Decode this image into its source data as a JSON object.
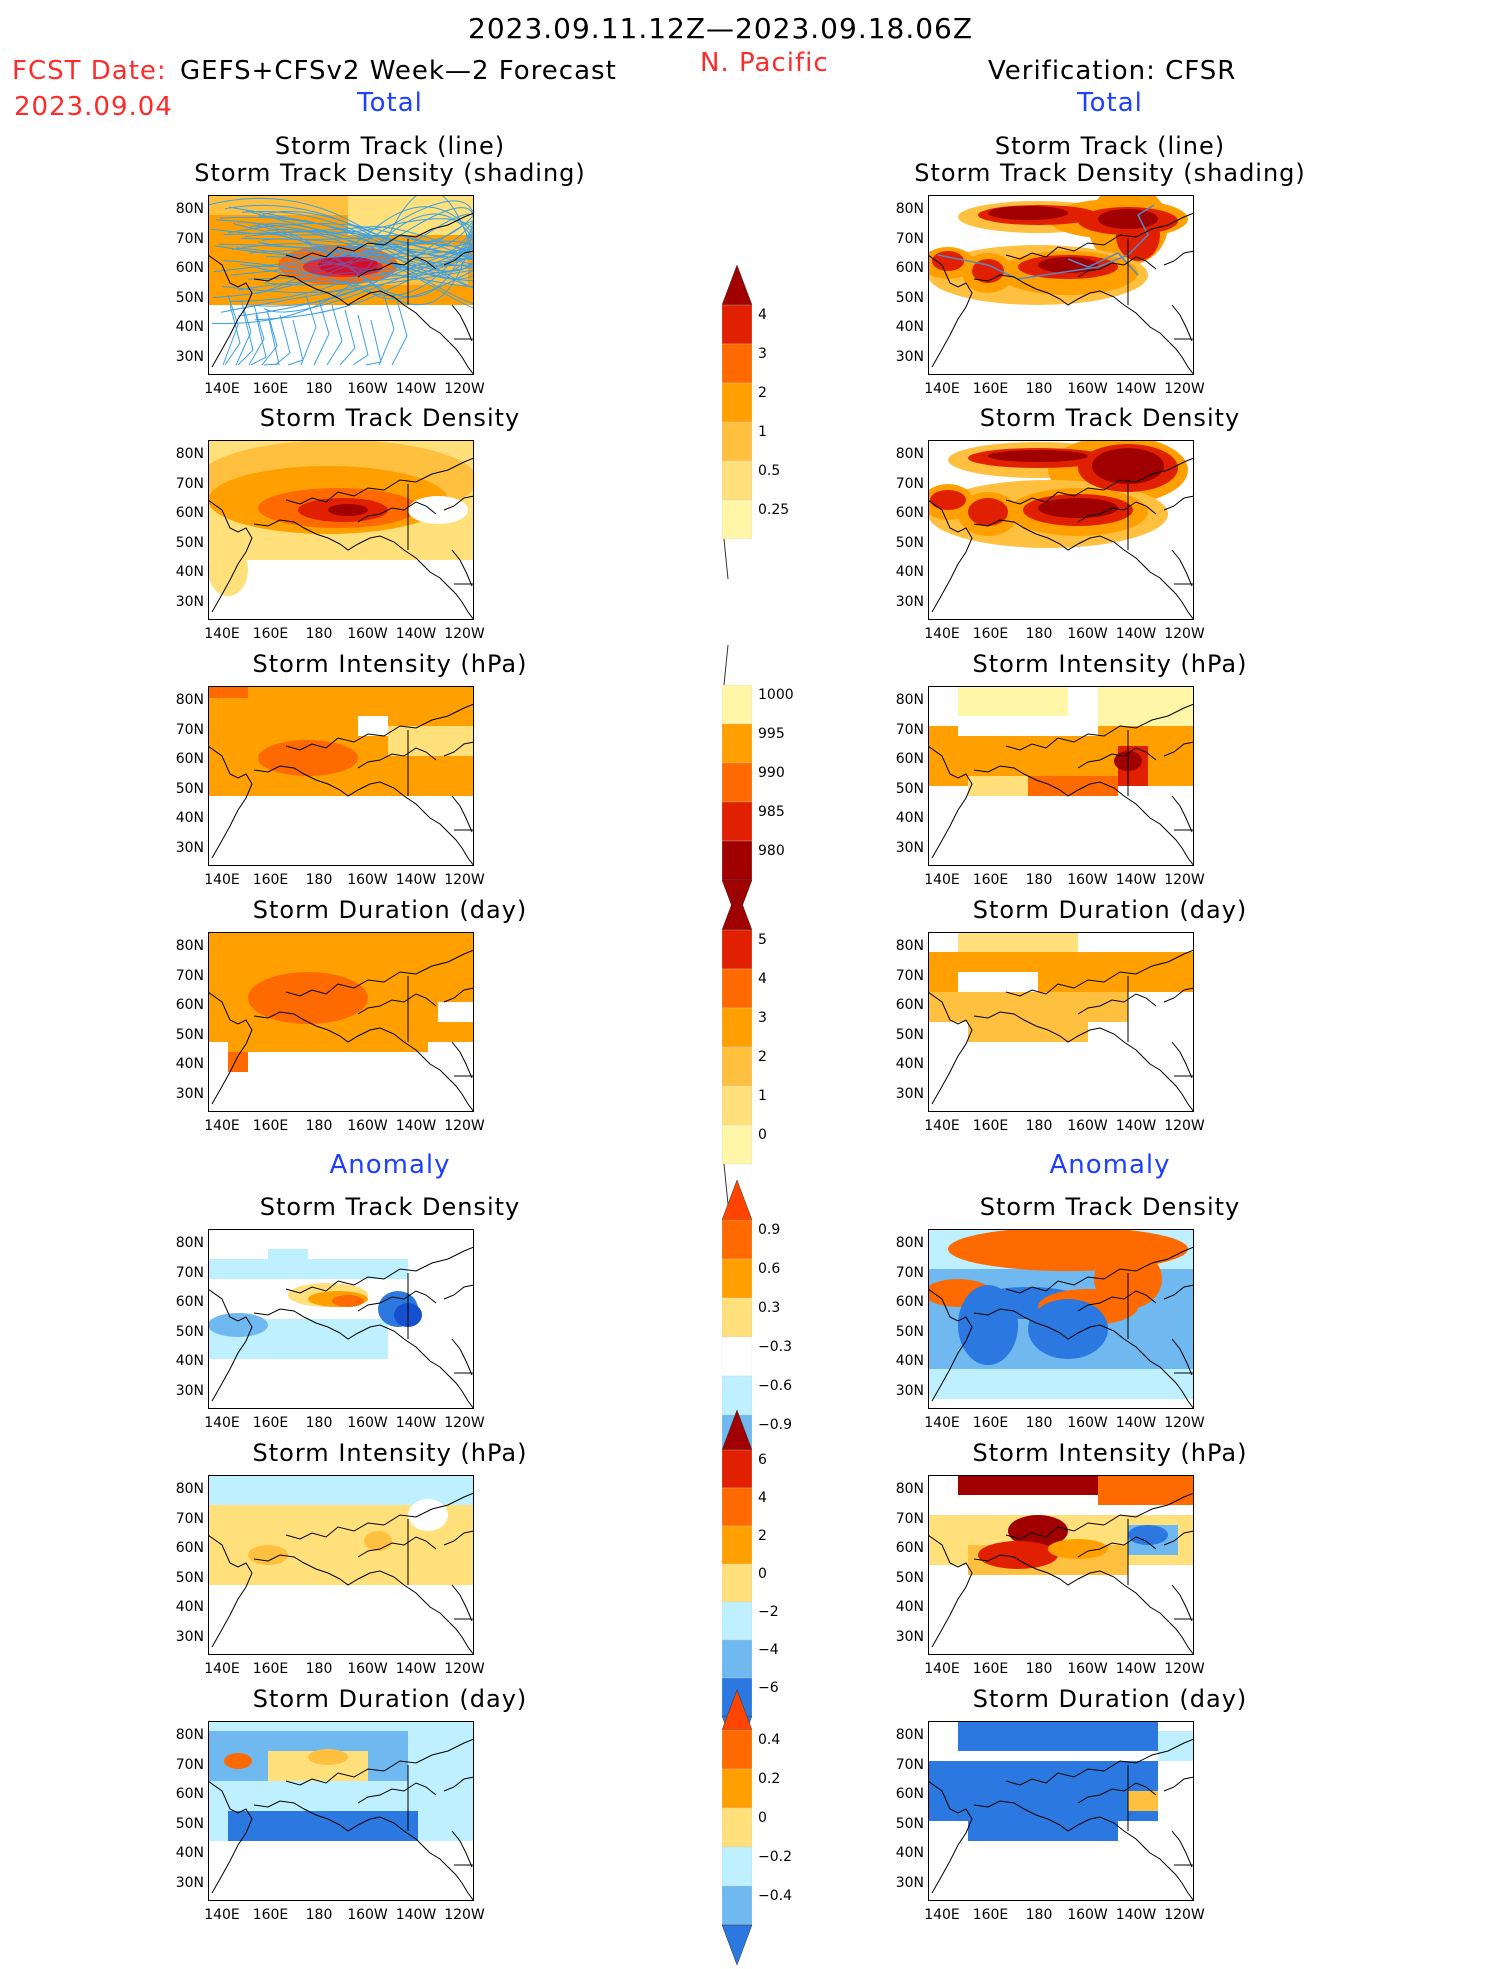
{
  "header": {
    "date_range": "2023.09.11.12Z—2023.09.18.06Z",
    "fcst_label": "FCST Date:",
    "fcst_model": "GEFS+CFSv2 Week—2 Forecast",
    "fcst_date": "2023.09.04",
    "region": "N. Pacific",
    "verification": "Verification: CFSR"
  },
  "colors": {
    "red_text": "#ff2a2a",
    "blue_text": "#1f3fff",
    "pale_yellow": "#fff6a8",
    "yellow": "#ffe07a",
    "light_orange": "#ffc040",
    "orange": "#ffa000",
    "dark_orange": "#ff6a00",
    "red": "#e02000",
    "dark_red": "#a00000",
    "light_blue": "#bff0ff",
    "mid_blue": "#6fb8f0",
    "blue": "#2a78e0",
    "dark_blue": "#1550d0"
  },
  "sections": {
    "total": "Total",
    "anomaly": "Anomaly"
  },
  "panel_titles": {
    "track_line": "Storm Track (line)",
    "track_shading": "Storm Track Density (shading)",
    "density": "Storm Track Density",
    "intensity": "Storm Intensity (hPa)",
    "duration": "Storm Duration (day)"
  },
  "axis": {
    "lat_labels": [
      "80N",
      "70N",
      "60N",
      "50N",
      "40N",
      "30N"
    ],
    "lon_labels": [
      "140E",
      "160E",
      "180",
      "160W",
      "140W",
      "120W"
    ]
  },
  "colorbars": {
    "density_total": [
      "4",
      "3",
      "2",
      "1",
      "0.5",
      "0.25"
    ],
    "intensity_total": [
      "1000",
      "995",
      "990",
      "985",
      "980"
    ],
    "duration_total": [
      "5",
      "4",
      "3",
      "2",
      "1",
      "0"
    ],
    "density_anom": [
      "0.9",
      "0.6",
      "0.3",
      "−0.3",
      "−0.6",
      "−0.9"
    ],
    "intensity_anom": [
      "6",
      "4",
      "2",
      "0",
      "−2",
      "−4",
      "−6"
    ],
    "duration_anom": [
      "0.4",
      "0.2",
      "0",
      "−0.2",
      "−0.4"
    ]
  }
}
